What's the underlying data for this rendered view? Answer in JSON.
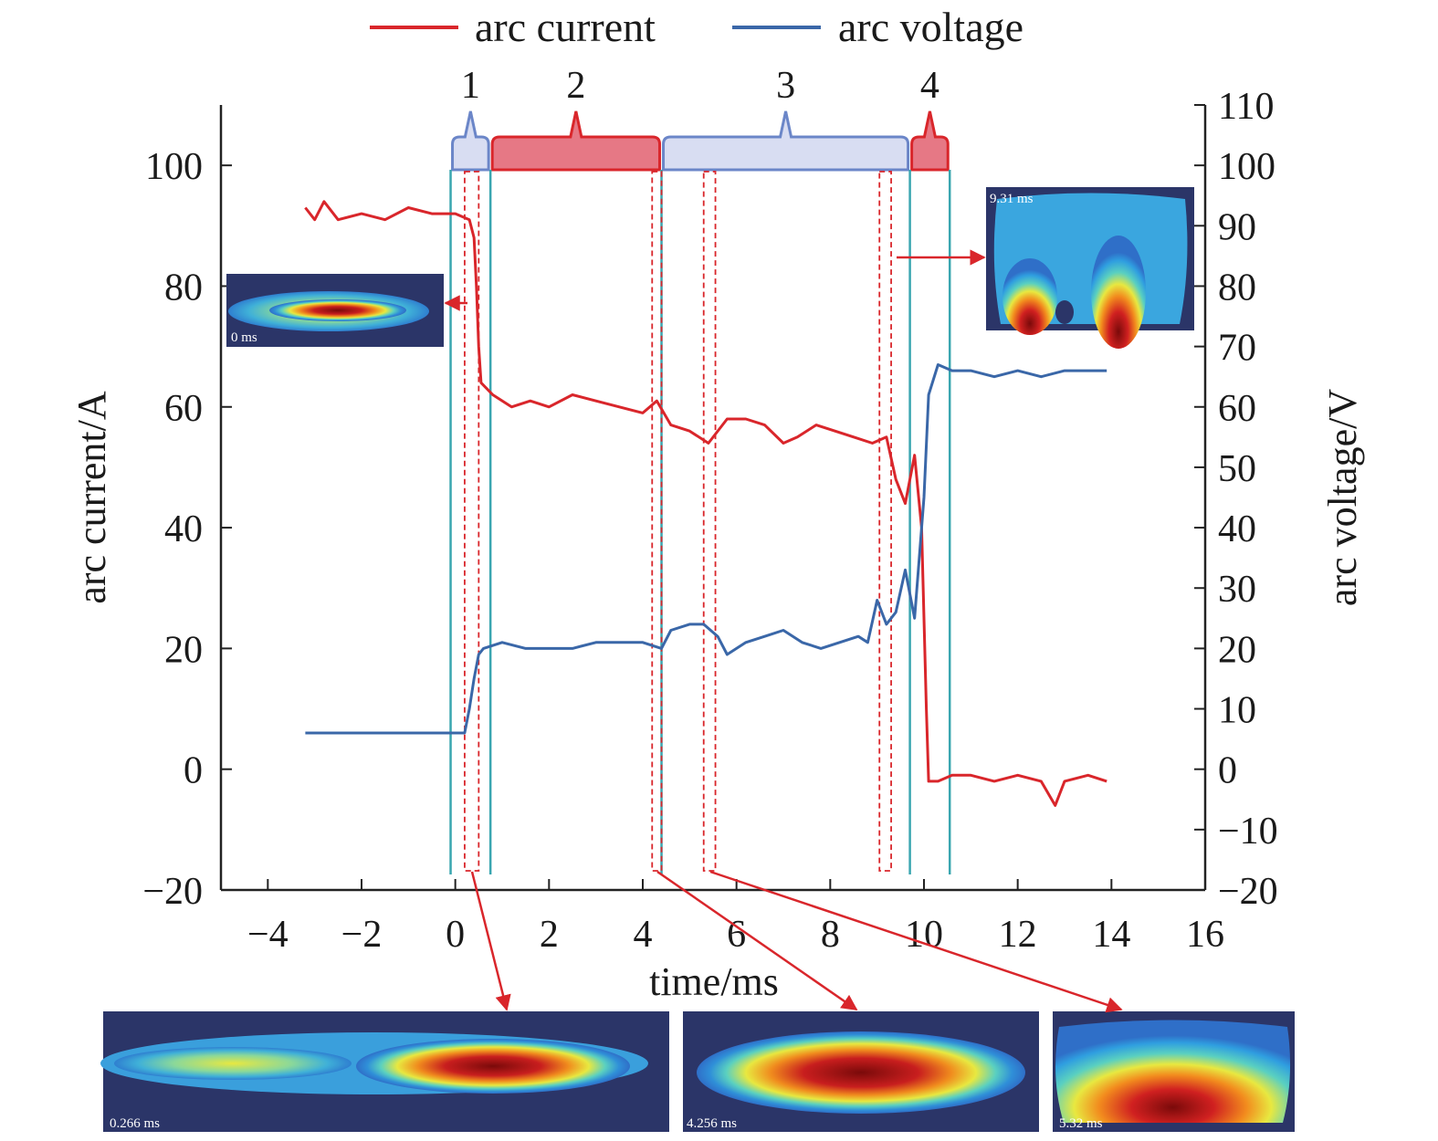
{
  "chart_data": {
    "type": "line",
    "xlabel": "time/ms",
    "ylabel_left": "arc current/A",
    "ylabel_right": "arc voltage/V",
    "xlim": [
      -5,
      16
    ],
    "ylim_left": [
      -20,
      110
    ],
    "ylim_right": [
      -20,
      110
    ],
    "x_ticks": [
      "−4",
      "−2",
      "0",
      "2",
      "4",
      "6",
      "8",
      "10",
      "12",
      "14",
      "16"
    ],
    "y_left_ticks": [
      "−20",
      "0",
      "20",
      "40",
      "60",
      "80",
      "100"
    ],
    "y_right_ticks": [
      "−20",
      "−10",
      "0",
      "10",
      "20",
      "30",
      "40",
      "50",
      "60",
      "70",
      "80",
      "90",
      "100",
      "110"
    ],
    "legend_position": "top-center",
    "series": [
      {
        "name": "arc current",
        "color": "#d9262b",
        "axis": "left",
        "points": [
          [
            -3.2,
            93
          ],
          [
            -3.0,
            91
          ],
          [
            -2.8,
            94
          ],
          [
            -2.5,
            91
          ],
          [
            -2.0,
            92
          ],
          [
            -1.5,
            91
          ],
          [
            -1.0,
            93
          ],
          [
            -0.5,
            92
          ],
          [
            0.0,
            92
          ],
          [
            0.3,
            91
          ],
          [
            0.4,
            88
          ],
          [
            0.45,
            80
          ],
          [
            0.5,
            70
          ],
          [
            0.55,
            64
          ],
          [
            0.8,
            62
          ],
          [
            1.2,
            60
          ],
          [
            1.6,
            61
          ],
          [
            2.0,
            60
          ],
          [
            2.5,
            62
          ],
          [
            3.0,
            61
          ],
          [
            3.5,
            60
          ],
          [
            4.0,
            59
          ],
          [
            4.3,
            61
          ],
          [
            4.6,
            57
          ],
          [
            5.0,
            56
          ],
          [
            5.4,
            54
          ],
          [
            5.8,
            58
          ],
          [
            6.2,
            58
          ],
          [
            6.6,
            57
          ],
          [
            7.0,
            54
          ],
          [
            7.3,
            55
          ],
          [
            7.7,
            57
          ],
          [
            8.1,
            56
          ],
          [
            8.5,
            55
          ],
          [
            8.9,
            54
          ],
          [
            9.2,
            55
          ],
          [
            9.4,
            48
          ],
          [
            9.6,
            44
          ],
          [
            9.8,
            52
          ],
          [
            9.95,
            40
          ],
          [
            10.05,
            10
          ],
          [
            10.1,
            -2
          ],
          [
            10.3,
            -2
          ],
          [
            10.6,
            -1
          ],
          [
            11.0,
            -1
          ],
          [
            11.5,
            -2
          ],
          [
            12.0,
            -1
          ],
          [
            12.5,
            -2
          ],
          [
            12.8,
            -6
          ],
          [
            13.0,
            -2
          ],
          [
            13.5,
            -1
          ],
          [
            13.9,
            -2
          ]
        ]
      },
      {
        "name": "arc voltage",
        "color": "#3a67a8",
        "axis": "right",
        "points": [
          [
            -3.2,
            6
          ],
          [
            -2.5,
            6
          ],
          [
            -2.0,
            6
          ],
          [
            -1.0,
            6
          ],
          [
            -0.5,
            6
          ],
          [
            0.0,
            6
          ],
          [
            0.2,
            6
          ],
          [
            0.3,
            10
          ],
          [
            0.4,
            15
          ],
          [
            0.5,
            19
          ],
          [
            0.6,
            20
          ],
          [
            1.0,
            21
          ],
          [
            1.5,
            20
          ],
          [
            2.0,
            20
          ],
          [
            2.5,
            20
          ],
          [
            3.0,
            21
          ],
          [
            3.5,
            21
          ],
          [
            4.0,
            21
          ],
          [
            4.4,
            20
          ],
          [
            4.6,
            23
          ],
          [
            5.0,
            24
          ],
          [
            5.3,
            24
          ],
          [
            5.6,
            22
          ],
          [
            5.8,
            19
          ],
          [
            6.2,
            21
          ],
          [
            6.6,
            22
          ],
          [
            7.0,
            23
          ],
          [
            7.4,
            21
          ],
          [
            7.8,
            20
          ],
          [
            8.2,
            21
          ],
          [
            8.6,
            22
          ],
          [
            8.8,
            21
          ],
          [
            9.0,
            28
          ],
          [
            9.2,
            24
          ],
          [
            9.4,
            26
          ],
          [
            9.6,
            33
          ],
          [
            9.8,
            25
          ],
          [
            10.0,
            45
          ],
          [
            10.1,
            62
          ],
          [
            10.3,
            67
          ],
          [
            10.6,
            66
          ],
          [
            11.0,
            66
          ],
          [
            11.5,
            65
          ],
          [
            12.0,
            66
          ],
          [
            12.5,
            65
          ],
          [
            13.0,
            66
          ],
          [
            13.5,
            66
          ],
          [
            13.9,
            66
          ]
        ]
      }
    ],
    "phases": [
      {
        "label": "1",
        "x0": -0.1,
        "x1": 0.75,
        "color": "#d8ddf2",
        "border": "#6b86c8"
      },
      {
        "label": "2",
        "x0": 0.75,
        "x1": 4.4,
        "color": "#e67885",
        "border": "#d9262b"
      },
      {
        "label": "3",
        "x0": 4.4,
        "x1": 9.7,
        "color": "#d8ddf2",
        "border": "#6b86c8"
      },
      {
        "label": "4",
        "x0": 9.7,
        "x1": 10.55,
        "color": "#e67885",
        "border": "#d9262b"
      }
    ],
    "insets": [
      {
        "label": "0 ms",
        "time": 0.0
      },
      {
        "label": "0.266 ms",
        "time": 0.266
      },
      {
        "label": "4.256 ms",
        "time": 4.256
      },
      {
        "label": "5.32 ms",
        "time": 5.32
      },
      {
        "label": "9.31 ms",
        "time": 9.31
      }
    ]
  }
}
